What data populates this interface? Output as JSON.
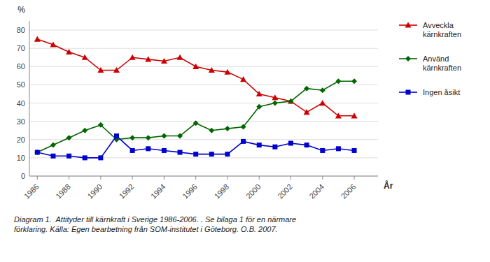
{
  "chart_data": {
    "type": "line",
    "x": [
      1986,
      1987,
      1988,
      1989,
      1990,
      1991,
      1992,
      1993,
      1994,
      1995,
      1996,
      1997,
      1998,
      1999,
      2000,
      2001,
      2002,
      2003,
      2004,
      2005,
      2006
    ],
    "series": [
      {
        "name": "Avveckla\nkärnkraften",
        "color": "#cc0000",
        "marker": "triangle",
        "values": [
          75,
          72,
          68,
          65,
          58,
          58,
          65,
          64,
          63,
          65,
          60,
          58,
          57,
          53,
          45,
          43,
          41,
          35,
          40,
          33,
          33
        ]
      },
      {
        "name": "Använd\nkärnkraften",
        "color": "#006600",
        "marker": "diamond",
        "values": [
          13,
          17,
          21,
          25,
          28,
          20,
          21,
          21,
          22,
          22,
          29,
          25,
          26,
          27,
          38,
          40,
          41,
          48,
          47,
          52,
          52
        ]
      },
      {
        "name": "Ingen åsikt",
        "color": "#0000cc",
        "marker": "square",
        "values": [
          13,
          11,
          11,
          10,
          10,
          22,
          14,
          15,
          14,
          13,
          12,
          12,
          12,
          19,
          17,
          16,
          18,
          17,
          14,
          15,
          14
        ]
      }
    ],
    "ylabel": "%",
    "xlabel": "År",
    "caption": "Diagram 1.  Attityder till kärnkraft i Sverige 1986-2006. . Se bilaga 1 för en närmare\nförklaring. Källa: Egen bearbetning från SOM-institutet i Göteborg. O.B. 2007.",
    "ylim": [
      0,
      85
    ],
    "yticks": [
      0,
      10,
      20,
      30,
      40,
      50,
      60,
      70,
      80
    ],
    "xlim": [
      1985.5,
      2007.5
    ],
    "xticks": [
      1986,
      1988,
      1990,
      1992,
      1994,
      1996,
      1998,
      2000,
      2002,
      2004,
      2006
    ],
    "grid": true,
    "legend": "right"
  }
}
